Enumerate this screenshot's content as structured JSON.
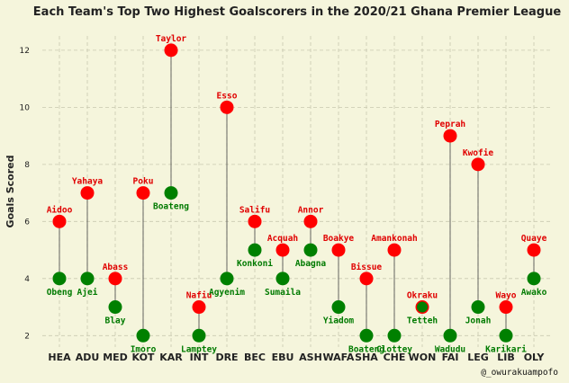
{
  "chart_data": {
    "type": "dumbbell",
    "title": "Each Team's Top Two Highest Goalscorers in the 2020/21 Ghana Premier League",
    "xlabel": "",
    "ylabel": "Goals Scored",
    "ylim": [
      1.6,
      12.5
    ],
    "yticks": [
      2,
      4,
      6,
      8,
      10,
      12
    ],
    "grid": true,
    "credit": "@_owurakuampofo",
    "colors": {
      "top": "#ff0000",
      "second": "#008000",
      "top_text": "#e00000",
      "second_text": "#007a00"
    },
    "categories": [
      "HEA",
      "ADU",
      "MED",
      "KOT",
      "KAR",
      "INT",
      "DRE",
      "BEC",
      "EBU",
      "ASH",
      "WAFA",
      "SHA",
      "CHE",
      "WON",
      "FAI",
      "LEG",
      "LIB",
      "OLY"
    ],
    "series": [
      {
        "role": "top",
        "values": [
          6,
          7,
          4,
          7,
          12,
          3,
          10,
          6,
          5,
          6,
          5,
          4,
          5,
          3,
          9,
          8,
          3,
          5
        ],
        "players": [
          "Aidoo",
          "Yahaya",
          "Abass",
          "Poku",
          "Taylor",
          "Nafiu",
          "Esso",
          "Salifu",
          "Acquah",
          "Annor",
          "Boakye",
          "Bissue",
          "Amankonah",
          "Okraku",
          "Peprah",
          "Kwofie",
          "Wayo",
          "Quaye"
        ]
      },
      {
        "role": "second",
        "values": [
          4,
          4,
          3,
          2,
          7,
          2,
          4,
          5,
          4,
          5,
          3,
          2,
          2,
          3,
          2,
          3,
          2,
          4
        ],
        "players": [
          "Obeng",
          "Ajei",
          "Blay",
          "Imoro",
          "Boateng",
          "Lamptey",
          "Agyenim",
          "Konkoni",
          "Sumaila",
          "Abagna",
          "Yiadom",
          "Boateng",
          "Clottey",
          "Tetteh",
          "Wadudu",
          "Jonah",
          "Karikari",
          "Awako"
        ]
      }
    ]
  }
}
